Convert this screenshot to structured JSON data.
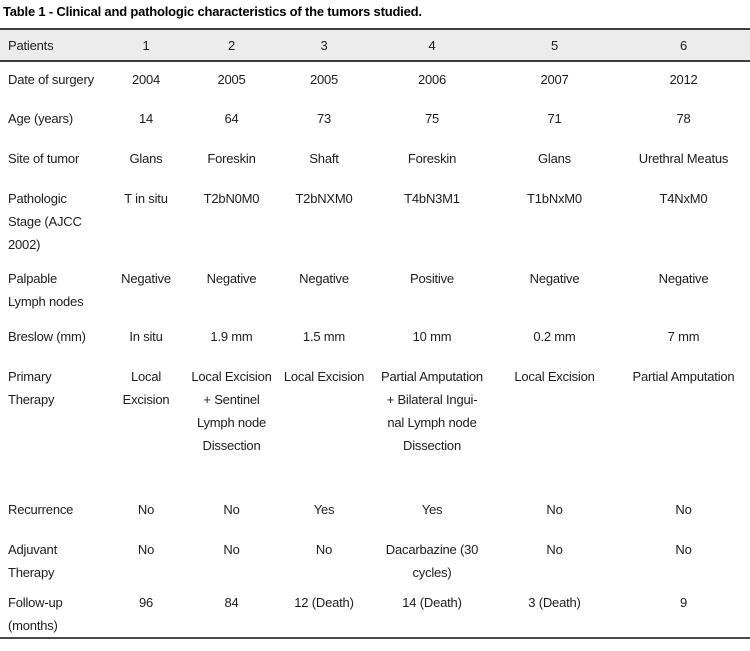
{
  "title": "Table 1 - Clinical and pathologic characteristics of the tumors studied.",
  "colors": {
    "header_background": "#ececec",
    "border_dark": "#3c3c3c",
    "text": "#1c1c1c"
  },
  "chart_data": {
    "type": "table",
    "title": "Table 1 - Clinical and pathologic characteristics of the tumors studied.",
    "header": {
      "label": "Patients",
      "columns": [
        "1",
        "2",
        "3",
        "4",
        "5",
        "6"
      ]
    },
    "rows": [
      {
        "label": "Date of surgery",
        "values": [
          "2004",
          "2005",
          "2005",
          "2006",
          "2007",
          "2012"
        ]
      },
      {
        "label": "Age (years)",
        "values": [
          "14",
          "64",
          "73",
          "75",
          "71",
          "78"
        ]
      },
      {
        "label": "Site of tumor",
        "values": [
          "Glans",
          "Foreskin",
          "Shaft",
          "Foreskin",
          "Glans",
          "Urethral Meatus"
        ]
      },
      {
        "label": "Pathologic\nStage (AJCC\n2002)",
        "values": [
          "T in situ",
          "T2bN0M0",
          "T2bNXM0",
          "T4bN3M1",
          "T1bNxM0",
          "T4NxM0"
        ]
      },
      {
        "label": "Palpable\nLymph nodes",
        "values": [
          "Negative",
          "Negative",
          "Negative",
          "Positive",
          "Negative",
          "Negative"
        ]
      },
      {
        "label": "Breslow (mm)",
        "values": [
          "In situ",
          "1.9 mm",
          "1.5 mm",
          "10 mm",
          "0.2 mm",
          "7 mm"
        ]
      },
      {
        "label": "Primary\nTherapy",
        "values": [
          "Local\nExcision",
          "Local Excision\n+ Sentinel\nLymph node\nDissection",
          "Local Excision",
          "Partial Amputation\n+ Bilateral Ingui-\nnal Lymph node\nDissection",
          "Local Excision",
          "Partial Amputation"
        ]
      },
      {
        "label": "Recurrence",
        "values": [
          "No",
          "No",
          "Yes",
          "Yes",
          "No",
          "No"
        ]
      },
      {
        "label": "Adjuvant\nTherapy",
        "values": [
          "No",
          "No",
          "No",
          "Dacarbazine (30\ncycles)",
          "No",
          "No"
        ]
      },
      {
        "label": "Follow-up\n(months)",
        "values": [
          "96",
          "84",
          "12 (Death)",
          "14 (Death)",
          "3 (Death)",
          "9"
        ]
      }
    ]
  }
}
